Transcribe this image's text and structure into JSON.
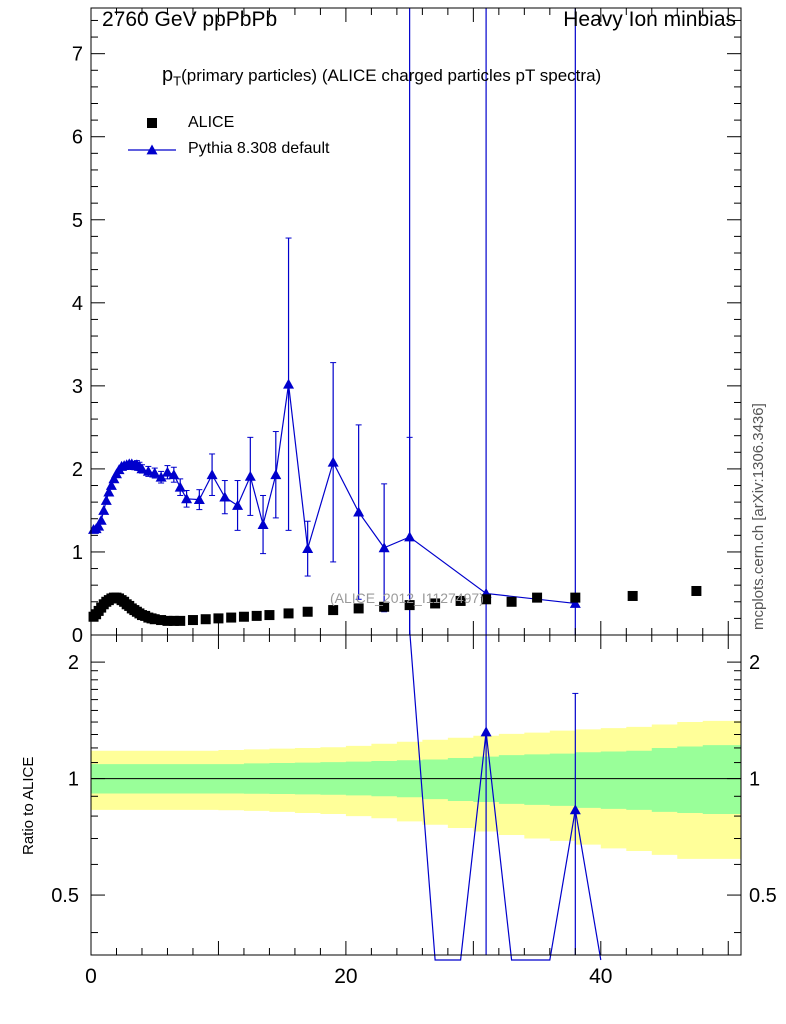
{
  "header": {
    "left": "2760 GeV ppPbPb",
    "right": "Heavy Ion minbias"
  },
  "title": {
    "prefix": "p",
    "subscript": "T",
    "rest": "(primary particles) (ALICE charged particles pT spectra)"
  },
  "watermark": "(ALICE_2012_I1127497)",
  "side_label": "mcplots.cern.ch [arXiv:1306.3436]",
  "colors": {
    "mc": "#0000cc",
    "data": "#000000",
    "band_inner": "#99ff99",
    "band_outer": "#ffff99"
  },
  "chart_data": [
    {
      "type": "line",
      "panel": "main",
      "xlim": [
        0,
        51
      ],
      "ylim": [
        0,
        7.55
      ],
      "yticks": [
        0,
        1,
        2,
        3,
        4,
        5,
        6,
        7
      ],
      "legend": {
        "placement": "top-left",
        "entries": [
          "ALICE",
          "Pythia 8.308 default"
        ]
      },
      "series": [
        {
          "name": "ALICE",
          "marker": "square",
          "x": [
            0.2,
            0.4,
            0.6,
            0.8,
            1.0,
            1.2,
            1.4,
            1.6,
            1.8,
            2.0,
            2.2,
            2.4,
            2.6,
            2.8,
            3.0,
            3.2,
            3.4,
            3.6,
            3.8,
            4.0,
            4.25,
            4.5,
            4.75,
            5.0,
            5.5,
            6.0,
            6.5,
            7.0,
            8.0,
            9.0,
            10.0,
            11.0,
            12.0,
            13.0,
            14.0,
            15.5,
            17.0,
            19.0,
            21.0,
            23.0,
            25.0,
            27.0,
            29.0,
            31.0,
            33.0,
            35.0,
            38.0,
            42.5,
            47.5
          ],
          "y": [
            0.22,
            0.25,
            0.29,
            0.33,
            0.37,
            0.4,
            0.42,
            0.44,
            0.45,
            0.45,
            0.44,
            0.42,
            0.4,
            0.37,
            0.35,
            0.32,
            0.3,
            0.28,
            0.26,
            0.24,
            0.23,
            0.21,
            0.2,
            0.19,
            0.18,
            0.17,
            0.17,
            0.17,
            0.18,
            0.19,
            0.2,
            0.21,
            0.22,
            0.23,
            0.24,
            0.26,
            0.28,
            0.3,
            0.32,
            0.34,
            0.36,
            0.38,
            0.41,
            0.43,
            0.4,
            0.45,
            0.45,
            0.47,
            0.53
          ]
        },
        {
          "name": "Pythia 8.308 default",
          "marker": "triangle",
          "points": [
            {
              "x": 0.2,
              "y": 1.27,
              "err": 0.02
            },
            {
              "x": 0.4,
              "y": 1.28,
              "err": 0.02
            },
            {
              "x": 0.6,
              "y": 1.31,
              "err": 0.02
            },
            {
              "x": 0.8,
              "y": 1.38,
              "err": 0.02
            },
            {
              "x": 1.0,
              "y": 1.5,
              "err": 0.03
            },
            {
              "x": 1.2,
              "y": 1.62,
              "err": 0.03
            },
            {
              "x": 1.4,
              "y": 1.72,
              "err": 0.03
            },
            {
              "x": 1.6,
              "y": 1.8,
              "err": 0.03
            },
            {
              "x": 1.8,
              "y": 1.88,
              "err": 0.03
            },
            {
              "x": 2.0,
              "y": 1.94,
              "err": 0.03
            },
            {
              "x": 2.2,
              "y": 1.99,
              "err": 0.03
            },
            {
              "x": 2.4,
              "y": 2.03,
              "err": 0.04
            },
            {
              "x": 2.6,
              "y": 2.04,
              "err": 0.04
            },
            {
              "x": 2.8,
              "y": 2.05,
              "err": 0.04
            },
            {
              "x": 3.0,
              "y": 2.06,
              "err": 0.04
            },
            {
              "x": 3.2,
              "y": 2.06,
              "err": 0.04
            },
            {
              "x": 3.4,
              "y": 2.04,
              "err": 0.05
            },
            {
              "x": 3.6,
              "y": 2.05,
              "err": 0.05
            },
            {
              "x": 3.8,
              "y": 2.03,
              "err": 0.05
            },
            {
              "x": 4.0,
              "y": 2.0,
              "err": 0.05
            },
            {
              "x": 4.5,
              "y": 1.97,
              "err": 0.06
            },
            {
              "x": 5.0,
              "y": 1.95,
              "err": 0.06
            },
            {
              "x": 5.5,
              "y": 1.9,
              "err": 0.07
            },
            {
              "x": 6.0,
              "y": 1.96,
              "err": 0.08
            },
            {
              "x": 6.5,
              "y": 1.93,
              "err": 0.09
            },
            {
              "x": 7.0,
              "y": 1.78,
              "err": 0.1
            },
            {
              "x": 7.5,
              "y": 1.64,
              "err": 0.1
            },
            {
              "x": 8.5,
              "y": 1.63,
              "err": 0.12
            },
            {
              "x": 9.5,
              "y": 1.93,
              "err": 0.25
            },
            {
              "x": 10.5,
              "y": 1.66,
              "err": 0.2
            },
            {
              "x": 11.5,
              "y": 1.56,
              "err": 0.3
            },
            {
              "x": 12.5,
              "y": 1.91,
              "err": 0.47
            },
            {
              "x": 13.5,
              "y": 1.33,
              "err": 0.35
            },
            {
              "x": 14.5,
              "y": 1.93,
              "err": 0.52
            },
            {
              "x": 15.5,
              "y": 3.02,
              "err": 1.76
            },
            {
              "x": 17.0,
              "y": 1.04,
              "err": 0.33
            },
            {
              "x": 19.0,
              "y": 2.08,
              "err": 1.2
            },
            {
              "x": 21.0,
              "y": 1.48,
              "err": 1.05
            },
            {
              "x": 23.0,
              "y": 1.05,
              "err": 0.77
            },
            {
              "x": 25.0,
              "y": 1.18,
              "err": 1.2
            },
            {
              "x": 31.0,
              "y": 0.5,
              "err": 7.2
            },
            {
              "x": 38.0,
              "y": 0.38,
              "err": 7.4
            }
          ]
        }
      ],
      "extra_error_lines_x": [
        25.0
      ]
    },
    {
      "type": "line",
      "panel": "ratio",
      "ylabel": "Ratio to ALICE",
      "xlim": [
        0,
        51
      ],
      "ylim": [
        0.35,
        2.35
      ],
      "ticks": {
        "x": [
          0,
          20,
          40
        ],
        "y": [
          0.5,
          1,
          2
        ]
      },
      "bands": {
        "x": [
          0.0,
          2.0,
          4.0,
          6.0,
          8.0,
          10.0,
          12.0,
          14.0,
          16.0,
          18.0,
          20.0,
          22.0,
          24.0,
          26.0,
          28.0,
          30.0,
          32.0,
          34.0,
          36.0,
          38.0,
          40.0,
          42.0,
          44.0,
          46.0,
          48.0,
          50.0
        ],
        "green_lo": [
          0.915,
          0.915,
          0.915,
          0.915,
          0.915,
          0.915,
          0.914,
          0.912,
          0.91,
          0.908,
          0.905,
          0.9,
          0.895,
          0.885,
          0.875,
          0.87,
          0.86,
          0.855,
          0.85,
          0.84,
          0.835,
          0.83,
          0.82,
          0.815,
          0.81,
          0.81
        ],
        "green_hi": [
          1.09,
          1.09,
          1.09,
          1.09,
          1.09,
          1.09,
          1.095,
          1.097,
          1.1,
          1.103,
          1.106,
          1.11,
          1.115,
          1.12,
          1.13,
          1.14,
          1.15,
          1.155,
          1.16,
          1.17,
          1.175,
          1.18,
          1.2,
          1.21,
          1.22,
          1.22
        ],
        "yellow_lo": [
          0.83,
          0.83,
          0.83,
          0.83,
          0.83,
          0.828,
          0.825,
          0.82,
          0.815,
          0.81,
          0.8,
          0.79,
          0.775,
          0.76,
          0.745,
          0.73,
          0.715,
          0.7,
          0.69,
          0.675,
          0.66,
          0.65,
          0.635,
          0.62,
          0.62,
          0.62
        ],
        "yellow_hi": [
          1.18,
          1.18,
          1.18,
          1.18,
          1.18,
          1.185,
          1.19,
          1.195,
          1.2,
          1.205,
          1.215,
          1.23,
          1.245,
          1.26,
          1.275,
          1.29,
          1.305,
          1.315,
          1.33,
          1.34,
          1.35,
          1.36,
          1.38,
          1.4,
          1.41,
          1.41
        ]
      },
      "mc_line": {
        "x": [
          25.0,
          27.0,
          29.0,
          31.0,
          33.0,
          36.0,
          38.0,
          40.0
        ],
        "y": [
          2.5,
          0.3,
          0.3,
          1.32,
          0.3,
          0.3,
          0.83,
          0.3
        ]
      },
      "mc_points": [
        {
          "x": 31.0,
          "y": 1.32,
          "lo": 0.3,
          "hi": 2.5
        },
        {
          "x": 38.0,
          "y": 0.83,
          "lo": 0.3,
          "hi": 1.66
        }
      ]
    }
  ]
}
